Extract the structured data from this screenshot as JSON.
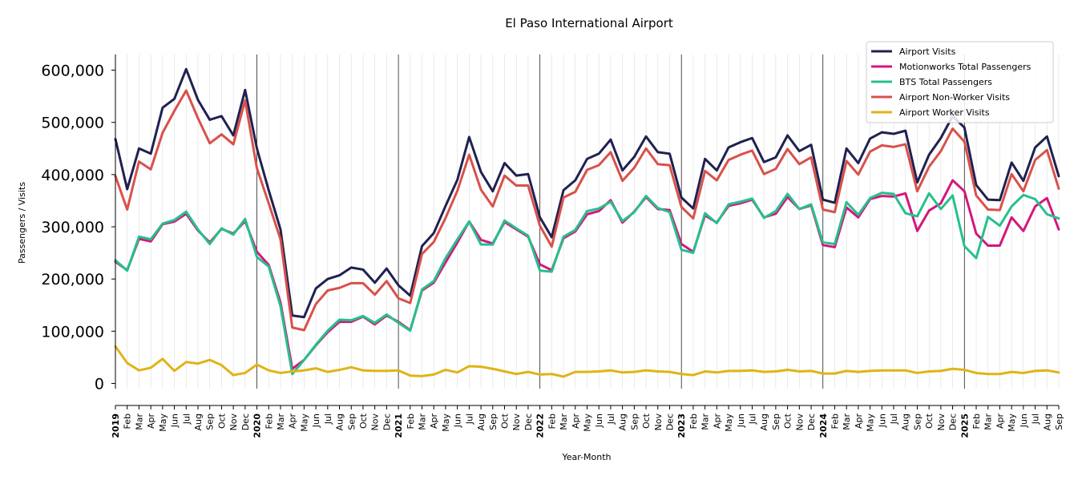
{
  "chart_data": {
    "type": "line",
    "title": "El Paso International Airport",
    "xlabel": "Year-Month",
    "ylabel": "Passengers / Visits",
    "ylim": [
      -10000,
      630000
    ],
    "y_ticks": [
      0,
      100000,
      200000,
      300000,
      400000,
      500000,
      600000
    ],
    "y_tick_labels": [
      "0",
      "100,000",
      "200,000",
      "300,000",
      "400,000",
      "500,000",
      "600,000"
    ],
    "x_start": "2019-01",
    "x_end": "2025-09",
    "months": [
      "Jan",
      "Feb",
      "Mar",
      "Apr",
      "May",
      "Jun",
      "Jul",
      "Aug",
      "Sep",
      "Oct",
      "Nov",
      "Dec"
    ],
    "years": [
      "2019",
      "2020",
      "2021",
      "2022",
      "2023",
      "2024",
      "2025"
    ],
    "grid": "vertical monthly lines, solid lines at year boundaries",
    "legend_position": "top-right",
    "series": [
      {
        "name": "Airport Visits",
        "color": "#1f2150",
        "values": [
          468000,
          372000,
          450000,
          440000,
          528000,
          545000,
          602000,
          543000,
          505000,
          512000,
          475000,
          562000,
          450000,
          370000,
          295000,
          130000,
          127000,
          182000,
          200000,
          207000,
          222000,
          218000,
          193000,
          220000,
          188000,
          168000,
          263000,
          288000,
          340000,
          390000,
          472000,
          405000,
          368000,
          422000,
          398000,
          401000,
          318000,
          280000,
          370000,
          389000,
          430000,
          440000,
          467000,
          408000,
          434000,
          473000,
          443000,
          440000,
          356000,
          335000,
          430000,
          408000,
          452000,
          462000,
          470000,
          424000,
          433000,
          475000,
          445000,
          457000,
          352000,
          346000,
          450000,
          422000,
          469000,
          481000,
          478000,
          484000,
          385000,
          438000,
          470000,
          512000,
          490000,
          380000,
          352000,
          351000,
          423000,
          388000,
          452000,
          473000,
          397000
        ]
      },
      {
        "name": "Motionworks Total Passengers",
        "color": "#d4167e",
        "values": [
          233000,
          217000,
          277000,
          272000,
          305000,
          310000,
          325000,
          293000,
          270000,
          296000,
          287000,
          311000,
          252000,
          227000,
          155000,
          28000,
          45000,
          73000,
          98000,
          118000,
          118000,
          128000,
          113000,
          130000,
          118000,
          102000,
          178000,
          193000,
          232000,
          270000,
          310000,
          275000,
          268000,
          309000,
          295000,
          281000,
          228000,
          217000,
          278000,
          291000,
          324000,
          330000,
          351000,
          308000,
          329000,
          357000,
          334000,
          332000,
          267000,
          252000,
          322000,
          308000,
          340000,
          345000,
          352000,
          318000,
          325000,
          357000,
          334000,
          341000,
          265000,
          261000,
          337000,
          318000,
          353000,
          359000,
          358000,
          364000,
          292000,
          331000,
          345000,
          389000,
          368000,
          287000,
          264000,
          264000,
          318000,
          292000,
          339000,
          355000,
          295000
        ]
      },
      {
        "name": "BTS Total Passengers",
        "color": "#26c08d",
        "values": [
          236000,
          216000,
          281000,
          276000,
          306000,
          313000,
          329000,
          295000,
          267000,
          297000,
          285000,
          315000,
          242000,
          224000,
          148000,
          18000,
          45000,
          74000,
          101000,
          122000,
          121000,
          129000,
          116000,
          132000,
          116000,
          101000,
          180000,
          196000,
          240000,
          276000,
          310000,
          266000,
          266000,
          312000,
          297000,
          283000,
          216000,
          214000,
          281000,
          294000,
          330000,
          335000,
          348000,
          311000,
          328000,
          359000,
          336000,
          328000,
          256000,
          250000,
          326000,
          307000,
          343000,
          348000,
          354000,
          317000,
          330000,
          363000,
          334000,
          343000,
          270000,
          267000,
          347000,
          323000,
          355000,
          365000,
          363000,
          326000,
          320000,
          364000,
          334000,
          360000,
          263000,
          240000,
          319000,
          302000,
          339000,
          361000,
          353000,
          324000,
          316000
        ]
      },
      {
        "name": "Airport Non-Worker Visits",
        "color": "#d9514b",
        "values": [
          397000,
          333000,
          425000,
          410000,
          480000,
          522000,
          561000,
          508000,
          460000,
          477000,
          458000,
          542000,
          412000,
          345000,
          276000,
          107000,
          102000,
          152000,
          178000,
          183000,
          192000,
          192000,
          170000,
          196000,
          163000,
          154000,
          248000,
          271000,
          317000,
          369000,
          438000,
          371000,
          339000,
          398000,
          379000,
          379000,
          302000,
          262000,
          356000,
          367000,
          409000,
          418000,
          443000,
          388000,
          413000,
          450000,
          420000,
          418000,
          338000,
          316000,
          407000,
          389000,
          428000,
          438000,
          446000,
          401000,
          411000,
          449000,
          420000,
          433000,
          333000,
          328000,
          426000,
          400000,
          444000,
          456000,
          453000,
          458000,
          368000,
          415000,
          445000,
          488000,
          463000,
          360000,
          333000,
          332000,
          401000,
          368000,
          428000,
          447000,
          373000
        ]
      },
      {
        "name": "Airport Worker Visits",
        "color": "#e0b317",
        "values": [
          71000,
          39000,
          25000,
          30000,
          47000,
          24000,
          41000,
          38000,
          45000,
          35000,
          16000,
          20000,
          36000,
          25000,
          20000,
          23000,
          25000,
          29000,
          22000,
          26000,
          31000,
          25000,
          24000,
          24000,
          25000,
          15000,
          14000,
          17000,
          26000,
          21000,
          33000,
          32000,
          28000,
          23000,
          18000,
          22000,
          17000,
          18000,
          13000,
          22000,
          22000,
          23000,
          25000,
          21000,
          22000,
          25000,
          23000,
          22000,
          18000,
          16000,
          23000,
          21000,
          24000,
          24000,
          25000,
          22000,
          23000,
          26000,
          23000,
          24000,
          19000,
          19000,
          24000,
          22000,
          24000,
          25000,
          25000,
          25000,
          20000,
          23000,
          24000,
          28000,
          26000,
          20000,
          18000,
          18000,
          22000,
          20000,
          24000,
          25000,
          21000
        ]
      }
    ]
  }
}
